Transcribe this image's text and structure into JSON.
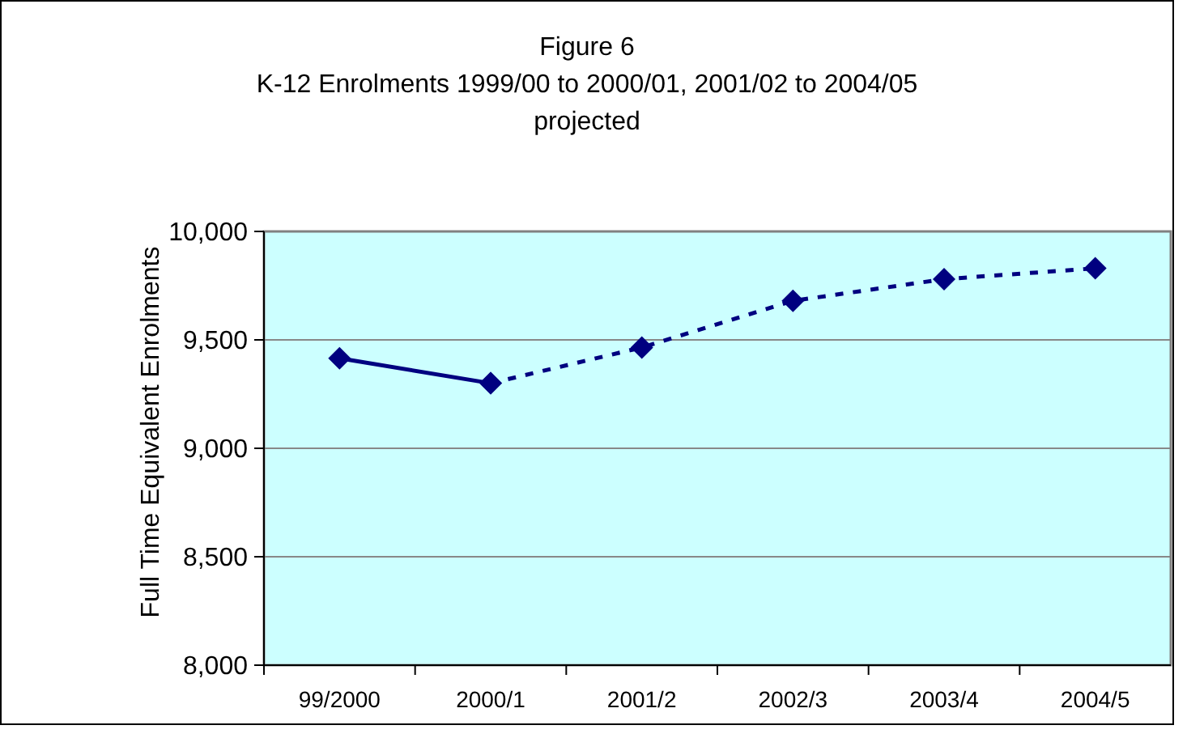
{
  "chart_data": {
    "type": "line",
    "title": "Figure 6\nK-12 Enrolments 1999/00 to 2000/01, 2001/02 to 2004/05\nprojected",
    "ylabel": "Full Time Equivalent Enrolments",
    "categories": [
      "99/2000",
      "2000/1",
      "2001/2",
      "2002/3",
      "2003/4",
      "2004/5"
    ],
    "series": [
      {
        "color": "#000080",
        "line_style": "solid",
        "values": [
          9415,
          9300,
          null,
          null,
          null,
          null
        ]
      },
      {
        "color": "#000080",
        "line_style": "dashed",
        "values": [
          null,
          9300,
          9465,
          9680,
          9780,
          9830
        ]
      }
    ],
    "ylim": [
      8000,
      10000
    ],
    "yticks": [
      {
        "value": 8000,
        "label": "8,000"
      },
      {
        "value": 8500,
        "label": "8,500"
      },
      {
        "value": 9000,
        "label": "9,000"
      },
      {
        "value": 9500,
        "label": "9,500"
      },
      {
        "value": 10000,
        "label": "10,000"
      }
    ],
    "grid": "y",
    "marker": "diamond"
  }
}
